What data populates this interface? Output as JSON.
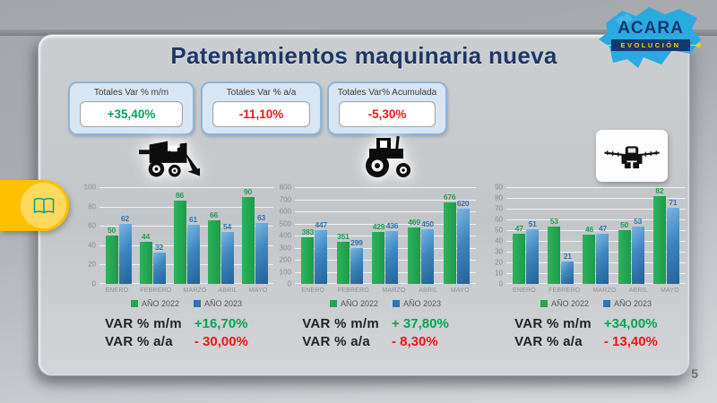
{
  "slide": {
    "title": "Patentamientos maquinaria nueva"
  },
  "logo": {
    "name": "ACARA",
    "tagline": "EVOLUCIÓN"
  },
  "kpis": [
    {
      "title": "Totales Var % m/m",
      "value": "+35,40%",
      "color": "#00a651"
    },
    {
      "title": "Totales Var % a/a",
      "value": "-11,10%",
      "color": "#f21515"
    },
    {
      "title": "Totales Var% Acumulada",
      "value": "-5,30%",
      "color": "#f21515"
    }
  ],
  "colors": {
    "bar_green": "#22a84f",
    "bar_blue": "#2e75b6",
    "label_green": "#1f9e4e",
    "label_blue": "#2e74b5",
    "value_green": "#00a651",
    "value_red": "#f21515",
    "title_navy": "#1e3765",
    "tab_yellow": "#ffc002",
    "logo_blue": "#29aae1"
  },
  "chart_data": [
    {
      "type": "bar",
      "icon": "combine-harvester-icon",
      "categories": [
        "ENERO",
        "FEBRERO",
        "MARZO",
        "ABRIL",
        "MAYO"
      ],
      "series": [
        {
          "name": "AÑO 2022",
          "values": [
            50,
            44,
            86,
            66,
            90
          ]
        },
        {
          "name": "AÑO 2023",
          "values": [
            62,
            32,
            61,
            54,
            63
          ]
        }
      ],
      "ylim": [
        0,
        100
      ],
      "ytick_step": 20,
      "grid": true,
      "legend_position": "bottom",
      "var_rows": [
        {
          "label": "VAR % m/m",
          "value": "+16,70%",
          "color": "green"
        },
        {
          "label": "VAR %  a/a",
          "value": "- 30,00%",
          "color": "red"
        }
      ]
    },
    {
      "type": "bar",
      "icon": "tractor-icon",
      "categories": [
        "ENERO",
        "FEBRERO",
        "MARZO",
        "ABRIL",
        "MAYO"
      ],
      "series": [
        {
          "name": "AÑO 2022",
          "values": [
            383,
            351,
            429,
            469,
            676
          ]
        },
        {
          "name": "AÑO 2023",
          "values": [
            447,
            299,
            436,
            450,
            620
          ]
        }
      ],
      "ylim": [
        0,
        800
      ],
      "ytick_step": 100,
      "grid": true,
      "legend_position": "bottom",
      "var_rows": [
        {
          "label": "VAR % m/m",
          "value": "+ 37,80%",
          "color": "green"
        },
        {
          "label": "VAR %  a/a",
          "value": "-  8,30%",
          "color": "red"
        }
      ]
    },
    {
      "type": "bar",
      "icon": "sprayer-icon",
      "categories": [
        "ENERO",
        "FEBRERO",
        "MARZO",
        "ABRIL",
        "MAYO"
      ],
      "series": [
        {
          "name": "AÑO 2022",
          "values": [
            47,
            53,
            46,
            50,
            82
          ]
        },
        {
          "name": "AÑO 2023",
          "values": [
            51,
            21,
            47,
            53,
            71
          ]
        }
      ],
      "ylim": [
        0,
        90
      ],
      "ytick_step": 10,
      "grid": true,
      "legend_position": "bottom",
      "var_rows": [
        {
          "label": "VAR % m/m",
          "value": "+34,00%",
          "color": "green"
        },
        {
          "label": "VAR %  a/a",
          "value": "- 13,40%",
          "color": "red"
        }
      ]
    }
  ],
  "footer": {
    "page_number": "5"
  }
}
